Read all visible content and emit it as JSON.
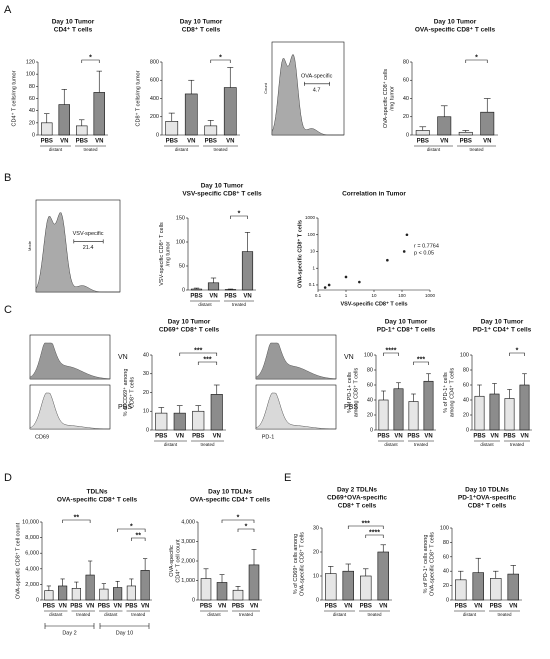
{
  "panels": [
    "A",
    "B",
    "C",
    "D",
    "E"
  ],
  "chart_data": [
    {
      "type": "bar",
      "title": [
        "Day 10 Tumor",
        "CD4⁺ T cells"
      ],
      "ylabel": [
        "CD4⁺ T cells/mg tumor"
      ],
      "categories": [
        "PBS",
        "VN",
        "PBS",
        "VN"
      ],
      "groups": [
        "distant",
        "treated"
      ],
      "values": [
        20,
        50,
        15,
        70
      ],
      "errors": [
        15,
        25,
        10,
        35
      ],
      "colors": [
        "#e6e6e6",
        "#8c8c8c",
        "#e6e6e6",
        "#8c8c8c"
      ],
      "ylim": [
        0,
        120
      ],
      "yticks": [
        0,
        20,
        40,
        60,
        80,
        100,
        120
      ],
      "significance": [
        {
          "pair": [
            2,
            3
          ],
          "label": "*"
        }
      ]
    },
    {
      "type": "bar",
      "title": [
        "Day 10 Tumor",
        "CD8⁺ T cells"
      ],
      "ylabel": [
        "CD8⁺ T cells/mg tumor"
      ],
      "categories": [
        "PBS",
        "VN",
        "PBS",
        "VN"
      ],
      "groups": [
        "distant",
        "treated"
      ],
      "values": [
        150,
        450,
        100,
        520
      ],
      "errors": [
        90,
        150,
        60,
        220
      ],
      "colors": [
        "#e6e6e6",
        "#8c8c8c",
        "#e6e6e6",
        "#8c8c8c"
      ],
      "ylim": [
        0,
        800
      ],
      "yticks": [
        0,
        200,
        400,
        600,
        800
      ],
      "significance": [
        {
          "pair": [
            2,
            3
          ],
          "label": "*"
        }
      ]
    },
    {
      "type": "flow",
      "ylabel": "Count",
      "gate": "OVA-specific",
      "gate_value": 4.7
    },
    {
      "type": "bar",
      "title": [
        "Day 10 Tumor",
        "OVA-specific CD8⁺ T cells"
      ],
      "ylabel": [
        "OVA-specific CD8⁺ cells",
        "/mg tumor"
      ],
      "categories": [
        "PBS",
        "VN",
        "PBS",
        "VN"
      ],
      "groups": [
        "distant",
        "treated"
      ],
      "values": [
        5,
        20,
        3,
        25
      ],
      "errors": [
        4,
        12,
        2,
        15
      ],
      "colors": [
        "#e6e6e6",
        "#8c8c8c",
        "#e6e6e6",
        "#8c8c8c"
      ],
      "ylim": [
        0,
        80
      ],
      "yticks": [
        0,
        20,
        40,
        60,
        80
      ],
      "significance": [
        {
          "pair": [
            2,
            3
          ],
          "label": "*"
        }
      ]
    },
    {
      "type": "flow",
      "ylabel": "Mode",
      "gate": "VSV-specific",
      "gate_value": 21.4
    },
    {
      "type": "bar",
      "title": [
        "Day 10 Tumor",
        "VSV-specific CD8⁺ T cells"
      ],
      "ylabel": [
        "VSV-specific CD8⁺ T cells",
        "/mg tumor"
      ],
      "categories": [
        "PBS",
        "VN",
        "PBS",
        "VN"
      ],
      "groups": [
        "distant",
        "treated"
      ],
      "values": [
        2,
        15,
        1,
        80
      ],
      "errors": [
        2,
        10,
        1,
        40
      ],
      "colors": [
        "#e6e6e6",
        "#8c8c8c",
        "#e6e6e6",
        "#8c8c8c"
      ],
      "ylim": [
        0,
        150
      ],
      "yticks": [
        0,
        50,
        100,
        150
      ],
      "significance": [
        {
          "pair": [
            2,
            3
          ],
          "label": "*"
        }
      ]
    },
    {
      "type": "scatter",
      "title": [
        "Correlation in Tumor"
      ],
      "xlabel": "VSV-specific CD8⁺ T cells",
      "ylabel": [
        "OVA-specific CD8⁺ T cells"
      ],
      "x": [
        0.18,
        0.25,
        1,
        3,
        30,
        120,
        150
      ],
      "values": [
        0.07,
        0.1,
        0.3,
        0.15,
        3,
        10,
        100
      ],
      "color": "#222222",
      "log": true,
      "xlim": [
        0.1,
        1000
      ],
      "ylim": [
        0.05,
        1000
      ],
      "xticks": [
        0.1,
        1,
        10,
        100,
        1000
      ],
      "yticks": [
        0.1,
        1,
        10,
        100,
        1000
      ],
      "annotations": [
        "r = 0.7764",
        "p < 0.05"
      ]
    },
    {
      "type": "flow",
      "samples": [
        "VN",
        "PBS"
      ],
      "xlabel": "CD69"
    },
    {
      "type": "bar",
      "title": [
        "Day 10 Tumor",
        "CD69⁺ CD8⁺ T cells"
      ],
      "ylabel": [
        "% of CD69⁺ among",
        "CD8⁺ T cells"
      ],
      "categories": [
        "PBS",
        "VN",
        "PBS",
        "VN"
      ],
      "groups": [
        "distant",
        "treated"
      ],
      "values": [
        9,
        9,
        10,
        19
      ],
      "errors": [
        3,
        4,
        3,
        5
      ],
      "colors": [
        "#e6e6e6",
        "#8c8c8c",
        "#e6e6e6",
        "#8c8c8c"
      ],
      "ylim": [
        0,
        40
      ],
      "yticks": [
        0,
        10,
        20,
        30,
        40
      ],
      "significance": [
        {
          "pair": [
            1,
            3
          ],
          "label": "***"
        },
        {
          "pair": [
            2,
            3
          ],
          "label": "***"
        }
      ]
    },
    {
      "type": "flow",
      "samples": [
        "VN",
        "PBS"
      ],
      "xlabel": "PD-1"
    },
    {
      "type": "bar",
      "title": [
        "Day 10 Tumor",
        "PD-1⁺ CD8⁺ T cells"
      ],
      "ylabel": [
        "% of PD-1+ cells",
        "among CD8⁺ T cells"
      ],
      "categories": [
        "PBS",
        "VN",
        "PBS",
        "VN"
      ],
      "groups": [
        "distant",
        "treated"
      ],
      "values": [
        40,
        55,
        38,
        65
      ],
      "errors": [
        12,
        8,
        10,
        10
      ],
      "colors": [
        "#e6e6e6",
        "#8c8c8c",
        "#e6e6e6",
        "#8c8c8c"
      ],
      "ylim": [
        0,
        100
      ],
      "yticks": [
        0,
        20,
        40,
        60,
        80,
        100
      ],
      "significance": [
        {
          "pair": [
            0,
            1
          ],
          "label": "****"
        },
        {
          "pair": [
            2,
            3
          ],
          "label": "***"
        }
      ]
    },
    {
      "type": "bar",
      "title": [
        "Day 10 Tumor",
        "PD-1⁺ CD4⁺ T cells"
      ],
      "ylabel": [
        "% of PD-1⁺ cells",
        "among CD4⁺ T cells"
      ],
      "categories": [
        "PBS",
        "VN",
        "PBS",
        "VN"
      ],
      "groups": [
        "distant",
        "treated"
      ],
      "values": [
        45,
        48,
        42,
        60
      ],
      "errors": [
        15,
        14,
        12,
        15
      ],
      "colors": [
        "#e6e6e6",
        "#8c8c8c",
        "#e6e6e6",
        "#8c8c8c"
      ],
      "ylim": [
        0,
        100
      ],
      "yticks": [
        0,
        20,
        40,
        60,
        80,
        100
      ],
      "significance": [
        {
          "pair": [
            2,
            3
          ],
          "label": "*"
        }
      ]
    },
    {
      "type": "bar",
      "title": [
        "TDLNs",
        "OVA-specific CD8⁺ T cells"
      ],
      "ylabel": [
        "OVA-specific CD8⁺ T cell count"
      ],
      "categories": [
        "PBS",
        "VN",
        "PBS",
        "VN",
        "PBS",
        "VN",
        "PBS",
        "VN"
      ],
      "groups": [
        "distant",
        "treated",
        "distant",
        "treated"
      ],
      "periods": [
        "Day 2",
        "Day 10"
      ],
      "values": [
        1200,
        1800,
        1500,
        3200,
        1400,
        1600,
        1800,
        3800
      ],
      "errors": [
        600,
        900,
        800,
        1800,
        700,
        800,
        900,
        1500
      ],
      "colors": [
        "#e6e6e6",
        "#8c8c8c",
        "#e6e6e6",
        "#8c8c8c",
        "#e6e6e6",
        "#8c8c8c",
        "#e6e6e6",
        "#8c8c8c"
      ],
      "ylim": [
        0,
        10000
      ],
      "yticks": [
        0,
        {
          "value": 2000,
          "label": "2,000"
        },
        {
          "value": 4000,
          "label": "4,000"
        },
        {
          "value": 6000,
          "label": "6,000"
        },
        {
          "value": 8000,
          "label": "8,000"
        },
        {
          "value": 10000,
          "label": "10,000"
        }
      ],
      "significance": [
        {
          "pair": [
            1,
            3
          ],
          "label": "**"
        },
        {
          "pair": [
            5,
            7
          ],
          "label": "*"
        },
        {
          "pair": [
            6,
            7
          ],
          "label": "**"
        }
      ]
    },
    {
      "type": "bar",
      "title": [
        "Day 10 TDLNs",
        "OVA-specific CD4⁺ T cells"
      ],
      "ylabel": [
        "OVA-specific",
        "CD4⁺ T cell count"
      ],
      "categories": [
        "PBS",
        "VN",
        "PBS",
        "VN"
      ],
      "groups": [
        "distant",
        "treated"
      ],
      "values": [
        1100,
        900,
        500,
        1800
      ],
      "errors": [
        500,
        400,
        200,
        800
      ],
      "colors": [
        "#e6e6e6",
        "#8c8c8c",
        "#e6e6e6",
        "#8c8c8c"
      ],
      "ylim": [
        0,
        4000
      ],
      "yticks": [
        0,
        {
          "value": 1000,
          "label": "1,000"
        },
        {
          "value": 2000,
          "label": "2,000"
        },
        {
          "value": 3000,
          "label": "3,000"
        },
        {
          "value": 4000,
          "label": "4,000"
        }
      ],
      "significance": [
        {
          "pair": [
            1,
            3
          ],
          "label": "*"
        },
        {
          "pair": [
            2,
            3
          ],
          "label": "*"
        }
      ]
    },
    {
      "type": "bar",
      "title": [
        "Day 2 TDLNs",
        "CD69⁺OVA-specific",
        "CD8⁺ T cells"
      ],
      "ylabel": [
        "% of CD69⁺ cells among",
        "OVA-specific CD8⁺ T cells"
      ],
      "categories": [
        "PBS",
        "VN",
        "PBS",
        "VN"
      ],
      "groups": [
        "distant",
        "treated"
      ],
      "values": [
        11,
        12,
        10,
        20
      ],
      "errors": [
        3,
        3,
        3,
        3
      ],
      "colors": [
        "#e6e6e6",
        "#8c8c8c",
        "#e6e6e6",
        "#8c8c8c"
      ],
      "ylim": [
        0,
        30
      ],
      "yticks": [
        0,
        10,
        20,
        30
      ],
      "significance": [
        {
          "pair": [
            1,
            3
          ],
          "label": "***"
        },
        {
          "pair": [
            2,
            3
          ],
          "label": "****"
        }
      ]
    },
    {
      "type": "bar",
      "title": [
        "Day 10 TDLNs",
        "PD-1⁺OVA-specific",
        "CD8⁺ T cells"
      ],
      "ylabel": [
        "% of PD-1⁺ cells among",
        "OVA-specific CD8⁺ T cells"
      ],
      "categories": [
        "PBS",
        "VN",
        "PBS",
        "VN"
      ],
      "groups": [
        "distant",
        "treated"
      ],
      "values": [
        28,
        38,
        30,
        36
      ],
      "errors": [
        12,
        20,
        10,
        12
      ],
      "colors": [
        "#e6e6e6",
        "#8c8c8c",
        "#e6e6e6",
        "#8c8c8c"
      ],
      "ylim": [
        0,
        100
      ],
      "yticks": [
        0,
        20,
        40,
        60,
        80,
        100
      ],
      "significance": []
    }
  ]
}
